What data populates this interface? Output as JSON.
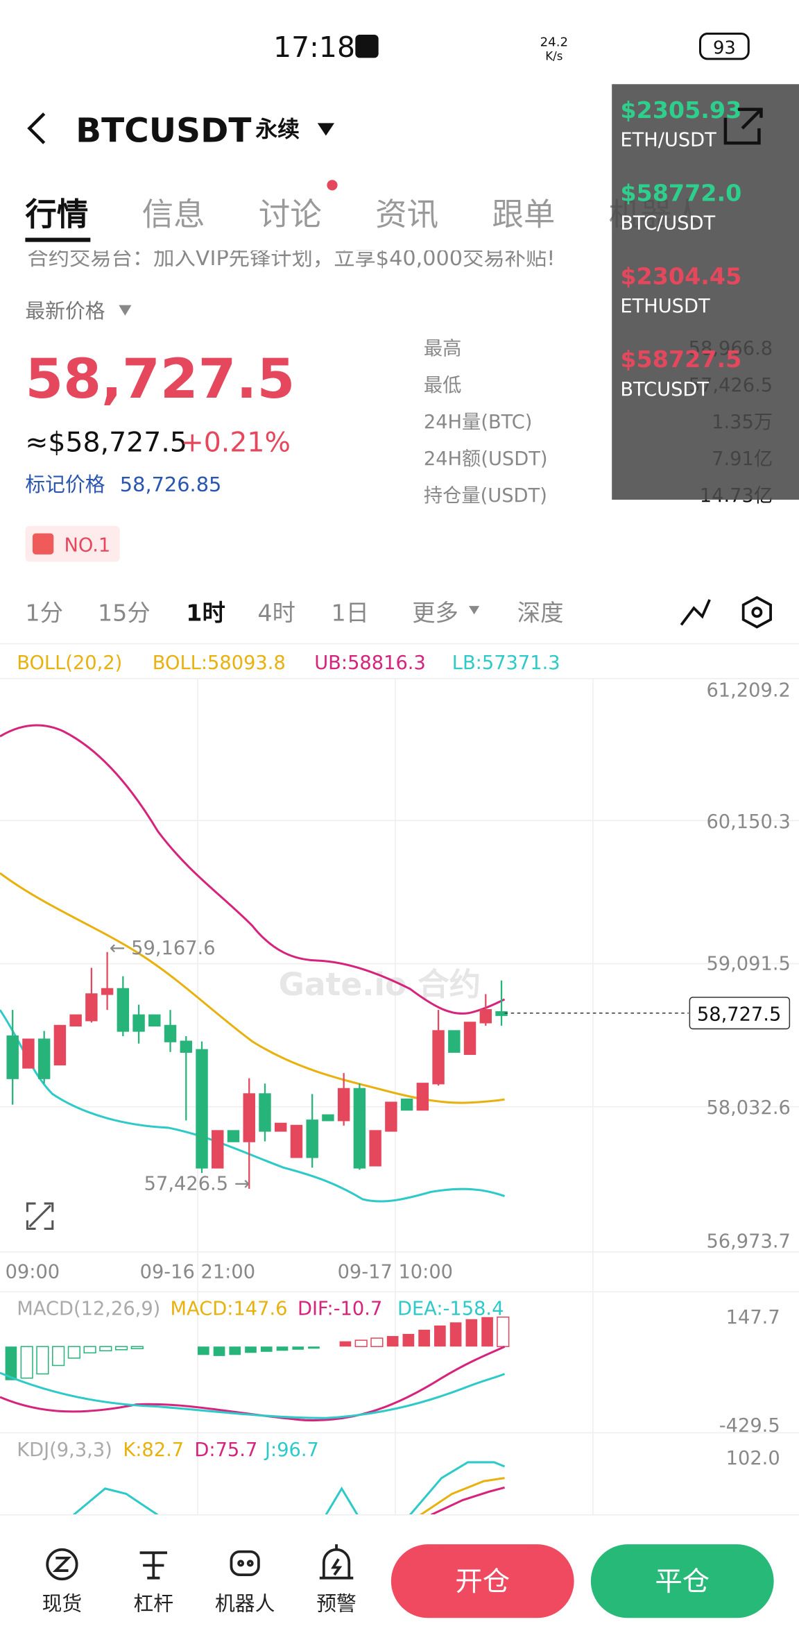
{
  "status_bar": {
    "time": "17:18",
    "speed": "24.2",
    "speed_unit": "K/s",
    "battery": "93"
  },
  "header": {
    "symbol": "BTCUSDT",
    "contract": "永续"
  },
  "tabs": [
    "行情",
    "信息",
    "讨论",
    "资讯",
    "跟单",
    "机器人"
  ],
  "banner": "合约交易台：加入VIP先锋计划，立享$40,000交易补贴!",
  "price": {
    "label": "最新价格",
    "last": "58,727.5",
    "usd": "≈$58,727.5",
    "change": "+0.21%",
    "mark_label": "标记价格",
    "mark": "58,726.85",
    "rank": "NO.1"
  },
  "stats": [
    {
      "label": "最高",
      "value": "58,966.8"
    },
    {
      "label": "最低",
      "value": "57,426.5"
    },
    {
      "label": "24H量(BTC)",
      "value": "1.35万"
    },
    {
      "label": "24H额(USDT)",
      "value": "7.91亿"
    },
    {
      "label": "持仓量(USDT)",
      "value": "14.73亿"
    }
  ],
  "overlay": [
    {
      "price": "$2305.93",
      "pair": "ETH/USDT",
      "color": "#2ecf8c"
    },
    {
      "price": "$58772.0",
      "pair": "BTC/USDT",
      "color": "#2ecf8c"
    },
    {
      "price": "$2304.45",
      "pair": "ETHUSDT",
      "color": "#e5475d"
    },
    {
      "price": "$58727.5",
      "pair": "BTCUSDT",
      "color": "#e5475d"
    }
  ],
  "intervals": [
    "1分",
    "15分",
    "1时",
    "4时",
    "1日",
    "更多",
    "深度"
  ],
  "boll": [
    "BOLL(20,2)",
    "BOLL:58093.8",
    "UB:58816.3",
    "LB:57371.3"
  ],
  "price_axis": [
    "61,209.2",
    "60,150.3",
    "59,091.5",
    "58,032.6",
    "56,973.7"
  ],
  "current_price": "58,727.5",
  "high_note": "← 59,167.6",
  "low_note": "57,426.5 →",
  "watermark": "Gate.io 合约",
  "time_axis": [
    "09:00",
    "09-16 21:00",
    "09-17 10:00"
  ],
  "macd": [
    "MACD(12,26,9)",
    "MACD:147.6",
    "DIF:-10.7",
    "DEA:-158.4"
  ],
  "macd_axis": [
    "147.7",
    "-429.5"
  ],
  "kdj": [
    "KDJ(9,3,3)",
    "K:82.7",
    "D:75.7",
    "J:96.7"
  ],
  "kdj_axis": [
    "102.0"
  ],
  "nav": [
    "现货",
    "杠杆",
    "机器人",
    "预警"
  ],
  "buttons": {
    "open": "开仓",
    "close": "平仓"
  }
}
